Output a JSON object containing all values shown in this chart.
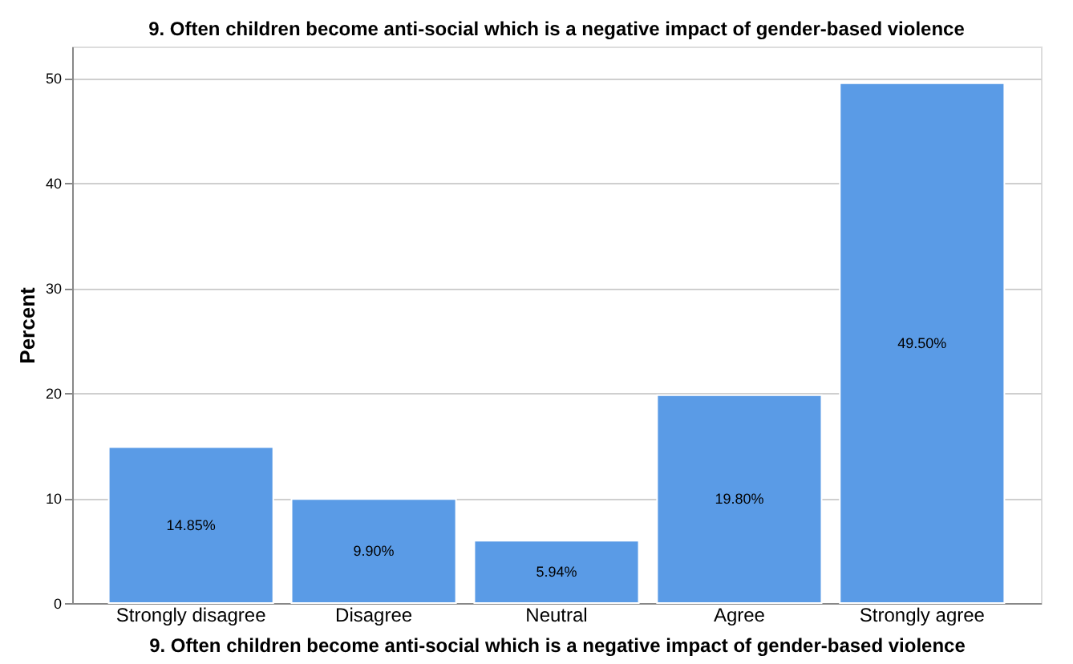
{
  "chart_data": {
    "type": "bar",
    "title": "9. Often children become anti-social which is a negative impact of gender-based violence",
    "xlabel": "9. Often children become anti-social which is a negative impact of gender-based violence",
    "ylabel": "Percent",
    "categories": [
      "Strongly disagree",
      "Disagree",
      "Neutral",
      "Agree",
      "Strongly agree"
    ],
    "values": [
      14.85,
      9.9,
      5.94,
      19.8,
      49.5
    ],
    "value_labels": [
      "14.85%",
      "9.90%",
      "5.94%",
      "19.80%",
      "49.50%"
    ],
    "color": "#5a9be6",
    "ylim": [
      0,
      53
    ],
    "yticks": [
      0,
      10,
      20,
      30,
      40,
      50
    ],
    "grid": "y"
  }
}
